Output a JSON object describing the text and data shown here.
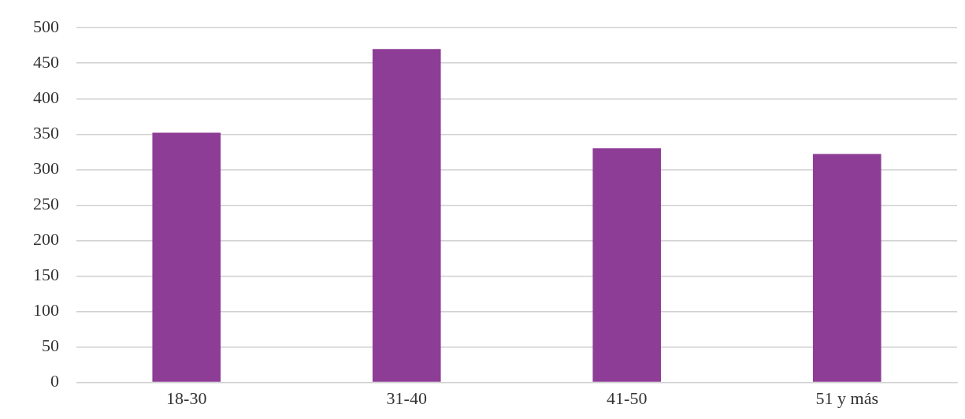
{
  "chart_data": {
    "type": "bar",
    "categories": [
      "18-30",
      "31-40",
      "41-50",
      "51 y más"
    ],
    "values": [
      352,
      470,
      330,
      322
    ],
    "color": "#8e3d96",
    "ylim": [
      0,
      500
    ],
    "yticks": [
      0,
      50,
      100,
      150,
      200,
      250,
      300,
      350,
      400,
      450,
      500
    ],
    "grid": "y"
  }
}
